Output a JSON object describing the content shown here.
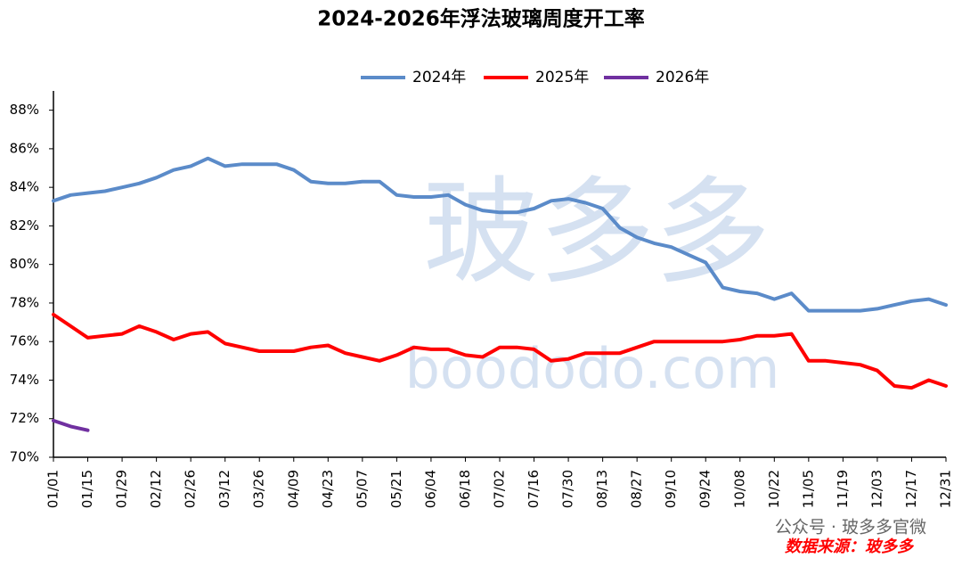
{
  "chart_data": {
    "type": "line",
    "title": "2024-2026年浮法玻璃周度开工率",
    "categories": [
      "01/01",
      null,
      "01/15",
      null,
      "01/29",
      null,
      "02/12",
      null,
      "02/26",
      null,
      "03/12",
      null,
      "03/26",
      null,
      "04/09",
      null,
      "04/23",
      null,
      "05/07",
      null,
      "05/21",
      null,
      "06/04",
      null,
      "06/18",
      null,
      "07/02",
      null,
      "07/16",
      null,
      "07/30",
      null,
      "08/13",
      null,
      "08/27",
      null,
      "09/10",
      null,
      "09/24",
      null,
      "10/08",
      null,
      "10/22",
      null,
      "11/05",
      null,
      "11/19",
      null,
      "12/03",
      null,
      "12/17",
      null,
      "12/31"
    ],
    "series": [
      {
        "name": "2024年",
        "color": "#5b8bc9",
        "values": [
          83.3,
          83.6,
          83.7,
          83.8,
          84.0,
          84.2,
          84.5,
          84.9,
          85.1,
          85.5,
          85.1,
          85.2,
          85.2,
          85.2,
          84.9,
          84.3,
          84.2,
          84.2,
          84.3,
          84.3,
          83.6,
          83.5,
          83.5,
          83.6,
          83.1,
          82.8,
          82.7,
          82.7,
          82.9,
          83.3,
          83.4,
          83.2,
          82.9,
          81.9,
          81.4,
          81.1,
          80.9,
          80.5,
          80.1,
          78.8,
          78.6,
          78.5,
          78.2,
          78.5,
          77.6,
          77.6,
          77.6,
          77.6,
          77.7,
          77.9,
          78.1,
          78.2,
          77.9
        ]
      },
      {
        "name": "2025年",
        "color": "#ff0000",
        "values": [
          77.4,
          76.8,
          76.2,
          76.3,
          76.4,
          76.8,
          76.5,
          76.1,
          76.4,
          76.5,
          75.9,
          75.7,
          75.5,
          75.5,
          75.5,
          75.7,
          75.8,
          75.4,
          75.2,
          75.0,
          75.3,
          75.7,
          75.6,
          75.6,
          75.3,
          75.2,
          75.7,
          75.7,
          75.6,
          75.0,
          75.1,
          75.4,
          75.4,
          75.4,
          75.7,
          76.0,
          76.0,
          76.0,
          76.0,
          76.0,
          76.1,
          76.3,
          76.3,
          76.4,
          75.0,
          75.0,
          74.9,
          74.8,
          74.5,
          73.7,
          73.6,
          74.0,
          73.7
        ]
      },
      {
        "name": "2026年",
        "color": "#7030a0",
        "values": [
          71.9,
          71.6,
          71.4,
          null,
          null,
          null,
          null,
          null,
          null,
          null,
          null,
          null,
          null,
          null,
          null,
          null,
          null,
          null,
          null,
          null,
          null,
          null,
          null,
          null,
          null,
          null,
          null,
          null,
          null,
          null,
          null,
          null,
          null,
          null,
          null,
          null,
          null,
          null,
          null,
          null,
          null,
          null,
          null,
          null,
          null,
          null,
          null,
          null,
          null,
          null,
          null,
          null,
          null
        ]
      }
    ],
    "ylim": [
      70,
      89
    ],
    "yticks": [
      {
        "value": 70,
        "label": "70%"
      },
      {
        "value": 72,
        "label": "72%"
      },
      {
        "value": 74,
        "label": "74%"
      },
      {
        "value": 76,
        "label": "76%"
      },
      {
        "value": 78,
        "label": "78%"
      },
      {
        "value": 80,
        "label": "80%"
      },
      {
        "value": 82,
        "label": "82%"
      },
      {
        "value": 84,
        "label": "84%"
      },
      {
        "value": 86,
        "label": "86%"
      },
      {
        "value": 88,
        "label": "88%"
      }
    ],
    "grid": false,
    "legend": "top"
  },
  "watermark": {
    "logo": "玻多多",
    "url": "boododo.com"
  },
  "wechat": "公众号 · 玻多多官微",
  "source": "数据来源：玻多多"
}
